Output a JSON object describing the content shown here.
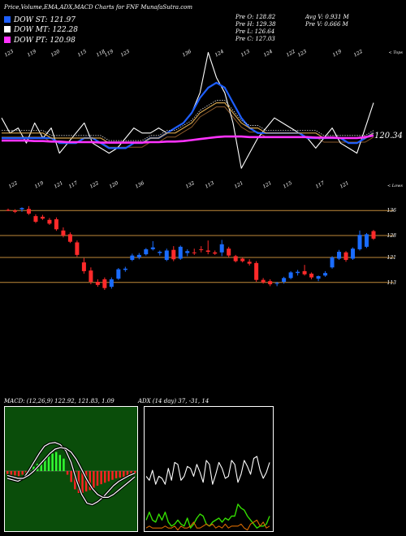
{
  "header": {
    "title": "Price,Volume,EMA,ADX,MACD Charts for FNF MunafaSutra.com",
    "open": "Pre  O: 128.82",
    "high": "Pre  H: 129.38",
    "low": "Pre  L: 126.64",
    "close": "Pre  C: 127.03",
    "avg_vol": "Avg V: 0.931 M",
    "pre_vol": "Pre  V: 0.666  M"
  },
  "legend": [
    {
      "label": "DOW ST: 121.97",
      "color": "#1e5fff"
    },
    {
      "label": "DOW MT: 122.28",
      "color": "#ffffff"
    },
    {
      "label": "DOW PT: 120.98",
      "color": "#ff33ff"
    }
  ],
  "colors": {
    "ema_short": "#1e5fff",
    "ema_mid": "#ffffff",
    "ema_long": "#ff33ff",
    "ema_a": "#d2a24c",
    "ema_b": "#8b5a2b",
    "candle_up": "#1a6cff",
    "candle_down": "#ff2a2a",
    "level_line": "#c08a3a",
    "macd_bg": "#0a4d0a",
    "macd_hist_up": "#33ff33",
    "macd_hist_down": "#ff2222",
    "adx_green": "#33dd00",
    "adx_orange": "#d86a00"
  },
  "chart_data": [
    {
      "type": "line",
      "name": "EMA panel",
      "top_label": "< Tops",
      "bottom_label": "< Lows",
      "last_value_label": "120.34",
      "top_labels": [
        "123",
        "119",
        "120",
        "115",
        "118",
        "119",
        "123",
        "136",
        "124",
        "113",
        "124",
        "122",
        "123",
        "119",
        "122"
      ],
      "bottom_labels": [
        "122",
        "119",
        "121",
        "117",
        "122",
        "120",
        "136",
        "132",
        "113",
        "121",
        "121",
        "115",
        "117",
        "121"
      ],
      "series": [
        {
          "role": "close",
          "values": [
            123,
            120,
            121,
            118,
            122,
            119,
            121,
            116,
            118,
            120,
            122,
            118,
            117,
            116,
            117,
            119,
            121,
            120,
            120,
            121,
            120,
            121,
            122,
            124,
            128,
            136,
            131,
            128,
            122,
            113,
            116,
            119,
            121,
            123,
            122,
            121,
            120,
            119,
            117,
            119,
            121,
            118,
            117,
            116,
            121,
            126
          ]
        },
        {
          "role": "ema_short",
          "values": [
            119,
            119,
            119,
            119,
            119,
            119,
            119,
            118,
            118,
            118,
            119,
            119,
            118,
            117,
            117,
            117,
            118,
            118,
            119,
            119,
            120,
            121,
            122,
            124,
            127,
            129,
            130,
            129,
            126,
            123,
            121,
            120,
            120,
            120,
            120,
            120,
            120,
            119,
            119,
            119,
            119,
            119,
            118,
            118,
            119,
            120
          ]
        },
        {
          "role": "ema_mid",
          "values": [
            120,
            120,
            120,
            120,
            120,
            120,
            119,
            119,
            119,
            119,
            119,
            119,
            119,
            118,
            118,
            118,
            118,
            118,
            119,
            119,
            120,
            120,
            121,
            122,
            124,
            125,
            126,
            126,
            124,
            122,
            121,
            121,
            120,
            120,
            120,
            120,
            120,
            120,
            120,
            119,
            119,
            119,
            119,
            119,
            119,
            120
          ]
        },
        {
          "role": "ema_long",
          "values": [
            118.5,
            118.5,
            118.5,
            118.5,
            118.4,
            118.4,
            118.3,
            118.3,
            118.2,
            118.2,
            118.2,
            118.2,
            118.1,
            118.1,
            118.1,
            118.1,
            118.1,
            118.1,
            118.2,
            118.2,
            118.3,
            118.3,
            118.4,
            118.6,
            118.8,
            119.0,
            119.2,
            119.3,
            119.3,
            119.3,
            119.2,
            119.2,
            119.2,
            119.2,
            119.2,
            119.2,
            119.2,
            119.2,
            119.1,
            119.1,
            119.1,
            119.0,
            119.0,
            119.0,
            119.2,
            119.5
          ]
        }
      ]
    },
    {
      "type": "candlestick",
      "name": "Price panel",
      "levels": [
        136,
        128,
        121,
        113
      ],
      "level_labels": [
        "136",
        "128",
        "121",
        "113"
      ],
      "candles": [
        {
          "o": 136.2,
          "h": 136.6,
          "l": 135.8,
          "c": 136.0
        },
        {
          "o": 136.0,
          "h": 136.4,
          "l": 135.2,
          "c": 135.6
        },
        {
          "o": 136.4,
          "h": 137.0,
          "l": 135.6,
          "c": 136.8
        },
        {
          "o": 136.5,
          "h": 137.4,
          "l": 134.6,
          "c": 135.0
        },
        {
          "o": 134.2,
          "h": 134.8,
          "l": 132.0,
          "c": 132.4
        },
        {
          "o": 134.0,
          "h": 134.6,
          "l": 133.0,
          "c": 133.4
        },
        {
          "o": 133.0,
          "h": 133.6,
          "l": 131.4,
          "c": 131.8
        },
        {
          "o": 133.2,
          "h": 133.8,
          "l": 129.5,
          "c": 130.0
        },
        {
          "o": 129.6,
          "h": 130.6,
          "l": 127.4,
          "c": 128.0
        },
        {
          "o": 128.4,
          "h": 129.0,
          "l": 125.6,
          "c": 126.0
        },
        {
          "o": 125.8,
          "h": 126.4,
          "l": 121.2,
          "c": 121.8
        },
        {
          "o": 119.4,
          "h": 120.8,
          "l": 115.8,
          "c": 116.6
        },
        {
          "o": 116.8,
          "h": 117.8,
          "l": 112.4,
          "c": 113.2
        },
        {
          "o": 113.2,
          "h": 114.0,
          "l": 111.6,
          "c": 112.2
        },
        {
          "o": 114.0,
          "h": 114.6,
          "l": 110.6,
          "c": 111.2
        },
        {
          "o": 111.6,
          "h": 114.6,
          "l": 111.0,
          "c": 114.0
        },
        {
          "o": 114.2,
          "h": 117.6,
          "l": 113.8,
          "c": 117.2
        },
        {
          "o": 117.0,
          "h": 118.0,
          "l": 116.4,
          "c": 117.4
        },
        {
          "o": 120.2,
          "h": 122.2,
          "l": 119.8,
          "c": 121.6
        },
        {
          "o": 121.0,
          "h": 122.4,
          "l": 120.4,
          "c": 121.8
        },
        {
          "o": 122.0,
          "h": 124.0,
          "l": 121.6,
          "c": 123.6
        },
        {
          "o": 123.6,
          "h": 126.2,
          "l": 123.2,
          "c": 124.2
        },
        {
          "o": 122.4,
          "h": 123.2,
          "l": 121.6,
          "c": 122.8
        },
        {
          "o": 120.2,
          "h": 123.8,
          "l": 119.8,
          "c": 123.2
        },
        {
          "o": 123.4,
          "h": 124.6,
          "l": 119.8,
          "c": 120.4
        },
        {
          "o": 120.6,
          "h": 124.8,
          "l": 120.2,
          "c": 124.4
        },
        {
          "o": 122.4,
          "h": 123.6,
          "l": 121.4,
          "c": 123.0
        },
        {
          "o": 122.6,
          "h": 123.8,
          "l": 121.8,
          "c": 122.4
        },
        {
          "o": 123.6,
          "h": 124.6,
          "l": 122.6,
          "c": 123.4
        },
        {
          "o": 123.2,
          "h": 126.4,
          "l": 122.0,
          "c": 122.8
        },
        {
          "o": 122.6,
          "h": 123.2,
          "l": 121.8,
          "c": 122.2
        },
        {
          "o": 122.6,
          "h": 126.6,
          "l": 121.4,
          "c": 125.2
        },
        {
          "o": 123.8,
          "h": 124.4,
          "l": 121.0,
          "c": 121.6
        },
        {
          "o": 121.4,
          "h": 121.8,
          "l": 119.4,
          "c": 119.8
        },
        {
          "o": 120.6,
          "h": 121.0,
          "l": 119.4,
          "c": 119.8
        },
        {
          "o": 119.6,
          "h": 120.4,
          "l": 118.4,
          "c": 119.0
        },
        {
          "o": 119.2,
          "h": 119.8,
          "l": 113.2,
          "c": 113.8
        },
        {
          "o": 113.8,
          "h": 114.4,
          "l": 112.6,
          "c": 113.0
        },
        {
          "o": 113.4,
          "h": 114.0,
          "l": 111.8,
          "c": 112.4
        },
        {
          "o": 112.6,
          "h": 113.2,
          "l": 111.8,
          "c": 112.8
        },
        {
          "o": 113.2,
          "h": 114.8,
          "l": 112.6,
          "c": 114.4
        },
        {
          "o": 114.4,
          "h": 116.6,
          "l": 114.0,
          "c": 116.2
        },
        {
          "o": 116.0,
          "h": 117.0,
          "l": 115.2,
          "c": 116.4
        },
        {
          "o": 116.6,
          "h": 118.6,
          "l": 115.2,
          "c": 115.6
        },
        {
          "o": 115.8,
          "h": 116.2,
          "l": 114.0,
          "c": 114.6
        },
        {
          "o": 114.2,
          "h": 115.2,
          "l": 113.4,
          "c": 115.0
        },
        {
          "o": 115.2,
          "h": 116.6,
          "l": 114.8,
          "c": 116.0
        },
        {
          "o": 117.8,
          "h": 121.4,
          "l": 117.4,
          "c": 121.0
        },
        {
          "o": 120.6,
          "h": 123.4,
          "l": 120.2,
          "c": 122.8
        },
        {
          "o": 122.6,
          "h": 123.0,
          "l": 119.6,
          "c": 120.2
        },
        {
          "o": 120.6,
          "h": 124.2,
          "l": 120.2,
          "c": 123.8
        },
        {
          "o": 123.6,
          "h": 129.6,
          "l": 123.2,
          "c": 128.2
        },
        {
          "o": 124.4,
          "h": 128.8,
          "l": 124.0,
          "c": 128.4
        },
        {
          "o": 129.4,
          "h": 129.8,
          "l": 126.6,
          "c": 127.0
        }
      ]
    },
    {
      "type": "bar",
      "name": "MACD panel",
      "label": "MACD: (12,26,9) 122.92, 121.83, 1.09",
      "histogram": [
        -0.4,
        -0.5,
        -0.6,
        -0.7,
        -0.5,
        -0.3,
        0.3,
        0.6,
        1.0,
        1.3,
        1.7,
        2.0,
        2.4,
        2.6,
        2.2,
        1.7,
        -0.5,
        -1.5,
        -2.5,
        -3.0,
        -3.0,
        -2.8,
        -2.6,
        -2.3,
        -2.0,
        -1.8,
        -1.6,
        -1.4,
        -1.2,
        -1.0,
        -0.9,
        -0.8,
        -0.6,
        -0.5,
        -0.3
      ],
      "series": [
        {
          "role": "macd",
          "values": [
            -1.0,
            -1.2,
            -1.4,
            -1.0,
            0.0,
            1.2,
            2.4,
            3.4,
            3.8,
            3.9,
            3.6,
            2.8,
            1.2,
            -1.2,
            -3.2,
            -4.4,
            -4.6,
            -4.2,
            -3.6,
            -2.8,
            -2.0,
            -1.4,
            -1.0,
            -0.6,
            -0.3
          ]
        },
        {
          "role": "signal",
          "values": [
            -0.6,
            -0.8,
            -1.0,
            -1.0,
            -0.6,
            0.0,
            0.8,
            1.6,
            2.4,
            3.0,
            3.2,
            3.1,
            2.6,
            1.6,
            0.2,
            -1.2,
            -2.4,
            -3.2,
            -3.6,
            -3.6,
            -3.2,
            -2.6,
            -2.0,
            -1.4,
            -0.8
          ]
        }
      ]
    },
    {
      "type": "line",
      "name": "ADX panel",
      "label": "ADX  (14 day) 37, -31, 14",
      "series": [
        {
          "role": "adx",
          "values": [
            30,
            28,
            33,
            26,
            30,
            29,
            26,
            34,
            28,
            37,
            36,
            28,
            30,
            35,
            34,
            30,
            36,
            32,
            27,
            38,
            36,
            26,
            31,
            37,
            34,
            29,
            30,
            38,
            36,
            27,
            31,
            38,
            35,
            31,
            39,
            40,
            33,
            29,
            32,
            37
          ]
        },
        {
          "role": "plus_di",
          "values": [
            8,
            12,
            8,
            7,
            11,
            8,
            12,
            7,
            5,
            6,
            8,
            6,
            5,
            9,
            4,
            6,
            9,
            11,
            10,
            6,
            5,
            7,
            8,
            9,
            7,
            9,
            8,
            10,
            10,
            16,
            14,
            13,
            10,
            8,
            6,
            4,
            5,
            5,
            6,
            10
          ]
        },
        {
          "role": "minus_di",
          "values": [
            4,
            5,
            4,
            4,
            4,
            4,
            5,
            4,
            4,
            5,
            3,
            5,
            4,
            4,
            5,
            7,
            4,
            4,
            5,
            6,
            5,
            6,
            4,
            5,
            4,
            6,
            4,
            5,
            5,
            5,
            6,
            4,
            3,
            6,
            7,
            8,
            5,
            7,
            4,
            5
          ]
        }
      ]
    }
  ]
}
